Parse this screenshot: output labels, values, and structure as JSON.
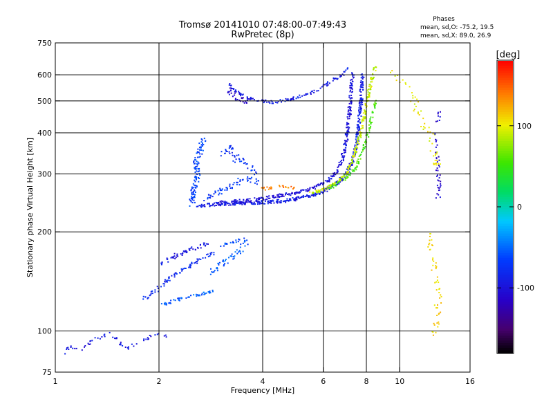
{
  "chart_data": {
    "type": "scatter",
    "title": "Tromsø 20141010 07:48:00-07:49:43",
    "subtitle": "RwPretec (8p)",
    "phases": {
      "heading": "Phases",
      "line_o": "mean, sd,O: -75.2, 19.5",
      "line_x": "mean, sd,X:  89.0, 26.9"
    },
    "xlabel": "Frequency [MHz]",
    "ylabel": "Stationary phase Virtual Height [km]",
    "x_scale": "log",
    "y_scale": "log",
    "xlim": [
      1,
      16
    ],
    "ylim": [
      75,
      750
    ],
    "grid": true,
    "x_ticks": [
      {
        "value": 1,
        "label": "1"
      },
      {
        "value": 2,
        "label": "2"
      },
      {
        "value": 4,
        "label": "4"
      },
      {
        "value": 6,
        "label": "6"
      },
      {
        "value": 8,
        "label": "8"
      },
      {
        "value": 10,
        "label": "10"
      },
      {
        "value": 16,
        "label": "16"
      }
    ],
    "y_ticks": [
      {
        "value": 75,
        "label": "75"
      },
      {
        "value": 100,
        "label": "100"
      },
      {
        "value": 200,
        "label": "200"
      },
      {
        "value": 300,
        "label": "300"
      },
      {
        "value": 400,
        "label": "400"
      },
      {
        "value": 500,
        "label": "500"
      },
      {
        "value": 600,
        "label": "600"
      },
      {
        "value": 750,
        "label": "750"
      }
    ],
    "x_grid": [
      2,
      4,
      6,
      8,
      10
    ],
    "y_grid": [
      100,
      200,
      300,
      400,
      500,
      600
    ],
    "colorbar": {
      "label": "[deg]",
      "range": [
        -180,
        180
      ],
      "ticks": [
        {
          "value": 100,
          "label": "100"
        },
        {
          "value": 0,
          "label": "0"
        },
        {
          "value": -100,
          "label": "-100"
        }
      ]
    },
    "traces": [
      {
        "points": [
          [
            1.05,
            85
          ],
          [
            1.1,
            90
          ],
          [
            1.2,
            88
          ],
          [
            1.3,
            95
          ],
          [
            1.45,
            98
          ],
          [
            1.6,
            88
          ],
          [
            1.75,
            93
          ],
          [
            1.95,
            97
          ],
          [
            2.02,
            98
          ],
          [
            2.1,
            96
          ]
        ],
        "phase": -95,
        "spread": 2.5,
        "density": 2
      },
      {
        "points": [
          [
            1.8,
            125
          ],
          [
            1.95,
            132
          ],
          [
            2.1,
            142
          ],
          [
            2.3,
            150
          ],
          [
            2.5,
            160
          ],
          [
            2.7,
            168
          ],
          [
            2.9,
            172
          ]
        ],
        "phase": -80,
        "spread": 3,
        "density": 4
      },
      {
        "points": [
          [
            2.0,
            160
          ],
          [
            2.2,
            168
          ],
          [
            2.4,
            175
          ],
          [
            2.6,
            180
          ],
          [
            2.8,
            185
          ]
        ],
        "phase": -95,
        "spread": 3,
        "density": 4
      },
      {
        "points": [
          [
            2.05,
            120
          ],
          [
            2.3,
            125
          ],
          [
            2.5,
            128
          ],
          [
            2.7,
            130
          ],
          [
            2.9,
            132
          ]
        ],
        "phase": -55,
        "spread": 2,
        "density": 4
      },
      {
        "points": [
          [
            2.8,
            150
          ],
          [
            3.0,
            158
          ],
          [
            3.2,
            165
          ],
          [
            3.4,
            175
          ],
          [
            3.6,
            185
          ]
        ],
        "phase": -55,
        "spread": 4,
        "density": 4
      },
      {
        "points": [
          [
            3.0,
            180
          ],
          [
            3.2,
            185
          ],
          [
            3.4,
            188
          ],
          [
            3.6,
            190
          ]
        ],
        "phase": -60,
        "spread": 2,
        "density": 3
      },
      {
        "points": [
          [
            2.5,
            240
          ],
          [
            2.5,
            260
          ],
          [
            2.55,
            280
          ],
          [
            2.6,
            300
          ],
          [
            2.55,
            320
          ],
          [
            2.6,
            340
          ],
          [
            2.65,
            360
          ],
          [
            2.7,
            380
          ]
        ],
        "phase": -65,
        "spread": 4,
        "density": 7
      },
      {
        "points": [
          [
            2.7,
            250
          ],
          [
            2.9,
            260
          ],
          [
            3.1,
            270
          ],
          [
            3.3,
            280
          ],
          [
            3.6,
            290
          ],
          [
            3.9,
            280
          ]
        ],
        "phase": -70,
        "spread": 4,
        "density": 4
      },
      {
        "points": [
          [
            3.0,
            340
          ],
          [
            3.2,
            360
          ],
          [
            3.4,
            330
          ],
          [
            3.6,
            320
          ],
          [
            3.8,
            300
          ]
        ],
        "phase": -75,
        "spread": 5,
        "density": 4
      },
      {
        "points": [
          [
            2.6,
            240
          ],
          [
            3.0,
            243
          ],
          [
            3.5,
            245
          ],
          [
            4.0,
            246
          ],
          [
            4.5,
            248
          ],
          [
            5.0,
            252
          ],
          [
            5.5,
            258
          ],
          [
            6.0,
            265
          ],
          [
            6.5,
            278
          ],
          [
            7.0,
            300
          ],
          [
            7.3,
            330
          ],
          [
            7.5,
            370
          ],
          [
            7.6,
            420
          ],
          [
            7.7,
            480
          ],
          [
            7.75,
            540
          ],
          [
            7.8,
            600
          ]
        ],
        "phase": -90,
        "spread": 2.5,
        "density": 7
      },
      {
        "points": [
          [
            3.0,
            245
          ],
          [
            3.5,
            248
          ],
          [
            4.0,
            252
          ],
          [
            4.5,
            258
          ],
          [
            5.0,
            262
          ],
          [
            5.5,
            270
          ],
          [
            6.0,
            280
          ],
          [
            6.5,
            300
          ],
          [
            6.8,
            330
          ],
          [
            7.0,
            380
          ],
          [
            7.1,
            430
          ],
          [
            7.2,
            500
          ],
          [
            7.25,
            560
          ],
          [
            7.3,
            610
          ]
        ],
        "phase": -100,
        "spread": 2.5,
        "density": 6
      },
      {
        "points": [
          [
            5.5,
            262
          ],
          [
            6.0,
            268
          ],
          [
            6.5,
            282
          ],
          [
            7.0,
            300
          ],
          [
            7.3,
            330
          ],
          [
            7.6,
            380
          ],
          [
            7.9,
            450
          ],
          [
            8.1,
            520
          ],
          [
            8.3,
            580
          ],
          [
            8.5,
            640
          ]
        ],
        "phase": 90,
        "spread": 2,
        "density": 6
      },
      {
        "points": [
          [
            6.2,
            270
          ],
          [
            6.8,
            285
          ],
          [
            7.4,
            310
          ],
          [
            7.8,
            350
          ],
          [
            8.1,
            400
          ],
          [
            8.3,
            450
          ],
          [
            8.5,
            500
          ]
        ],
        "phase": 55,
        "spread": 2,
        "density": 4
      },
      {
        "points": [
          [
            3.2,
            560
          ],
          [
            3.4,
            530
          ],
          [
            3.6,
            510
          ],
          [
            3.9,
            500
          ],
          [
            4.3,
            495
          ],
          [
            4.8,
            505
          ],
          [
            5.3,
            520
          ],
          [
            5.8,
            540
          ],
          [
            6.3,
            570
          ],
          [
            6.8,
            600
          ],
          [
            7.1,
            630
          ]
        ],
        "phase": -90,
        "spread": 2,
        "density": 4
      },
      {
        "points": [
          [
            3.2,
            540
          ],
          [
            3.3,
            520
          ],
          [
            3.4,
            510
          ],
          [
            3.5,
            505
          ],
          [
            3.6,
            500
          ]
        ],
        "phase": -110,
        "spread": 5,
        "density": 6
      },
      {
        "points": [
          [
            4.0,
            270
          ],
          [
            4.5,
            275
          ],
          [
            5.0,
            272
          ]
        ],
        "phase": 140,
        "spread": 2,
        "density": 3
      },
      {
        "points": [
          [
            9.5,
            600
          ],
          [
            10.5,
            560
          ],
          [
            11.5,
            450
          ],
          [
            12.5,
            380
          ],
          [
            13.0,
            300
          ]
        ],
        "phase": 100,
        "spread": 6,
        "density": 2
      },
      {
        "points": [
          [
            12.0,
            200
          ],
          [
            12.5,
            160
          ],
          [
            13.0,
            130
          ],
          [
            12.8,
            110
          ],
          [
            12.5,
            95
          ]
        ],
        "phase": 110,
        "spread": 5,
        "density": 2
      },
      {
        "points": [
          [
            13.0,
            470
          ],
          [
            12.8,
            420
          ],
          [
            13.0,
            260
          ],
          [
            12.9,
            250
          ]
        ],
        "phase": -110,
        "spread": 3,
        "density": 2
      }
    ]
  }
}
